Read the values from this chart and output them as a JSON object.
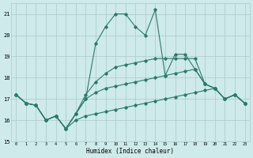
{
  "xlabel": "Humidex (Indice chaleur)",
  "x": [
    0,
    1,
    2,
    3,
    4,
    5,
    6,
    7,
    8,
    9,
    10,
    11,
    12,
    13,
    14,
    15,
    16,
    17,
    18,
    19,
    20,
    21,
    22,
    23
  ],
  "line_main": [
    17.2,
    16.8,
    16.7,
    16.0,
    16.2,
    15.6,
    16.3,
    17.0,
    19.6,
    20.4,
    21.0,
    21.0,
    20.4,
    20.0,
    21.2,
    18.1,
    19.1,
    19.1,
    18.4,
    17.7,
    17.5,
    17.0,
    17.2,
    16.8
  ],
  "line_upper": [
    17.2,
    16.8,
    16.7,
    16.0,
    16.2,
    15.6,
    16.3,
    17.2,
    17.8,
    18.2,
    18.5,
    18.6,
    18.7,
    18.8,
    18.9,
    18.9,
    18.9,
    18.9,
    18.9,
    17.7,
    17.5,
    17.0,
    17.2,
    16.8
  ],
  "line_mid": [
    17.2,
    16.8,
    16.7,
    16.0,
    16.2,
    15.6,
    16.3,
    17.0,
    17.3,
    17.5,
    17.6,
    17.7,
    17.8,
    17.9,
    18.0,
    18.1,
    18.2,
    18.3,
    18.4,
    17.7,
    17.5,
    17.0,
    17.2,
    16.8
  ],
  "line_lower": [
    17.2,
    16.8,
    16.7,
    16.0,
    16.2,
    15.6,
    16.0,
    16.2,
    16.3,
    16.4,
    16.5,
    16.6,
    16.7,
    16.8,
    16.9,
    17.0,
    17.1,
    17.2,
    17.3,
    17.4,
    17.5,
    17.0,
    17.2,
    16.8
  ],
  "line_color": "#2a7a6a",
  "bg_color": "#ceeaea",
  "grid_color": "#aacaca",
  "ylim": [
    15,
    21.5
  ],
  "yticks": [
    15,
    16,
    17,
    18,
    19,
    20,
    21
  ],
  "xticks": [
    0,
    1,
    2,
    3,
    4,
    5,
    6,
    7,
    8,
    9,
    10,
    11,
    12,
    13,
    14,
    15,
    16,
    17,
    18,
    19,
    20,
    21,
    22,
    23
  ],
  "marker": "D",
  "markersize": 1.8,
  "linewidth": 0.8
}
